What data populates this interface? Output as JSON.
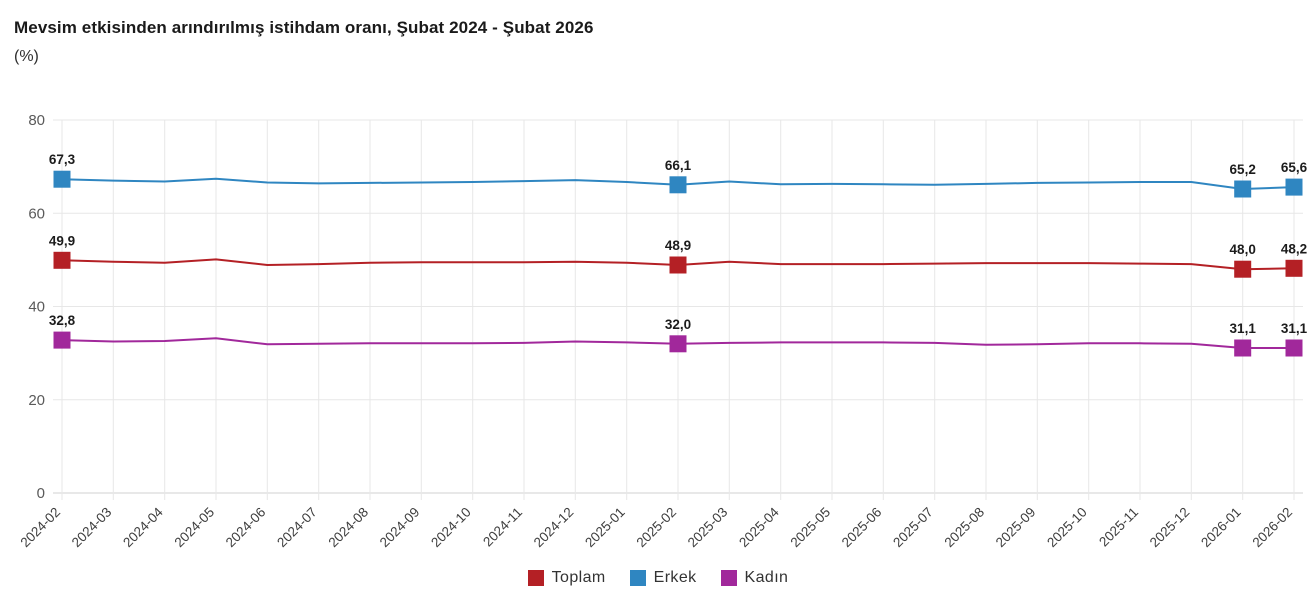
{
  "header": {
    "title": "Mevsim etkisinden arındırılmış istihdam oranı, Şubat 2024 - Şubat 2026",
    "subtitle": "(%)"
  },
  "legend": [
    {
      "label": "Toplam",
      "color": "#b42025"
    },
    {
      "label": "Erkek",
      "color": "#2f86c1"
    },
    {
      "label": "Kadın",
      "color": "#a1289b"
    }
  ],
  "chart_data": {
    "type": "line",
    "title": "Mevsim etkisinden arındırılmış istihdam oranı, Şubat 2024 - Şubat 2026",
    "ylabel": "(%)",
    "x": [
      "2024-02",
      "2024-03",
      "2024-04",
      "2024-05",
      "2024-06",
      "2024-07",
      "2024-08",
      "2024-09",
      "2024-10",
      "2024-11",
      "2024-12",
      "2025-01",
      "2025-02",
      "2025-03",
      "2025-04",
      "2025-05",
      "2025-06",
      "2025-07",
      "2025-08",
      "2025-09",
      "2025-10",
      "2025-11",
      "2025-12",
      "2026-01",
      "2026-02"
    ],
    "ylim": [
      0,
      80
    ],
    "yticks": [
      0,
      20,
      40,
      60,
      80
    ],
    "grid": true,
    "legend_position": "bottom",
    "decimal_separator": ",",
    "marker": "square",
    "series": [
      {
        "name": "Toplam",
        "color": "#b42025",
        "values": [
          49.9,
          49.6,
          49.4,
          50.1,
          48.9,
          49.1,
          49.4,
          49.5,
          49.5,
          49.5,
          49.6,
          49.4,
          48.9,
          49.6,
          49.1,
          49.1,
          49.1,
          49.2,
          49.3,
          49.3,
          49.3,
          49.2,
          49.1,
          48.0,
          48.2
        ],
        "point_labels": {
          "0": "49,9",
          "12": "48,9",
          "23": "48,0",
          "24": "48,2"
        }
      },
      {
        "name": "Erkek",
        "color": "#2f86c1",
        "values": [
          67.3,
          67.0,
          66.8,
          67.4,
          66.6,
          66.4,
          66.5,
          66.6,
          66.7,
          66.9,
          67.1,
          66.7,
          66.1,
          66.8,
          66.2,
          66.3,
          66.2,
          66.1,
          66.3,
          66.5,
          66.6,
          66.7,
          66.7,
          65.2,
          65.6
        ],
        "point_labels": {
          "0": "67,3",
          "12": "66,1",
          "23": "65,2",
          "24": "65,6"
        }
      },
      {
        "name": "Kadın",
        "color": "#a1289b",
        "values": [
          32.8,
          32.5,
          32.6,
          33.2,
          31.9,
          32.0,
          32.1,
          32.1,
          32.1,
          32.2,
          32.5,
          32.3,
          32.0,
          32.2,
          32.3,
          32.3,
          32.3,
          32.2,
          31.8,
          31.9,
          32.1,
          32.1,
          32.0,
          31.1,
          31.1
        ],
        "point_labels": {
          "0": "32,8",
          "12": "32,0",
          "23": "31,1",
          "24": "31,1"
        }
      }
    ]
  }
}
